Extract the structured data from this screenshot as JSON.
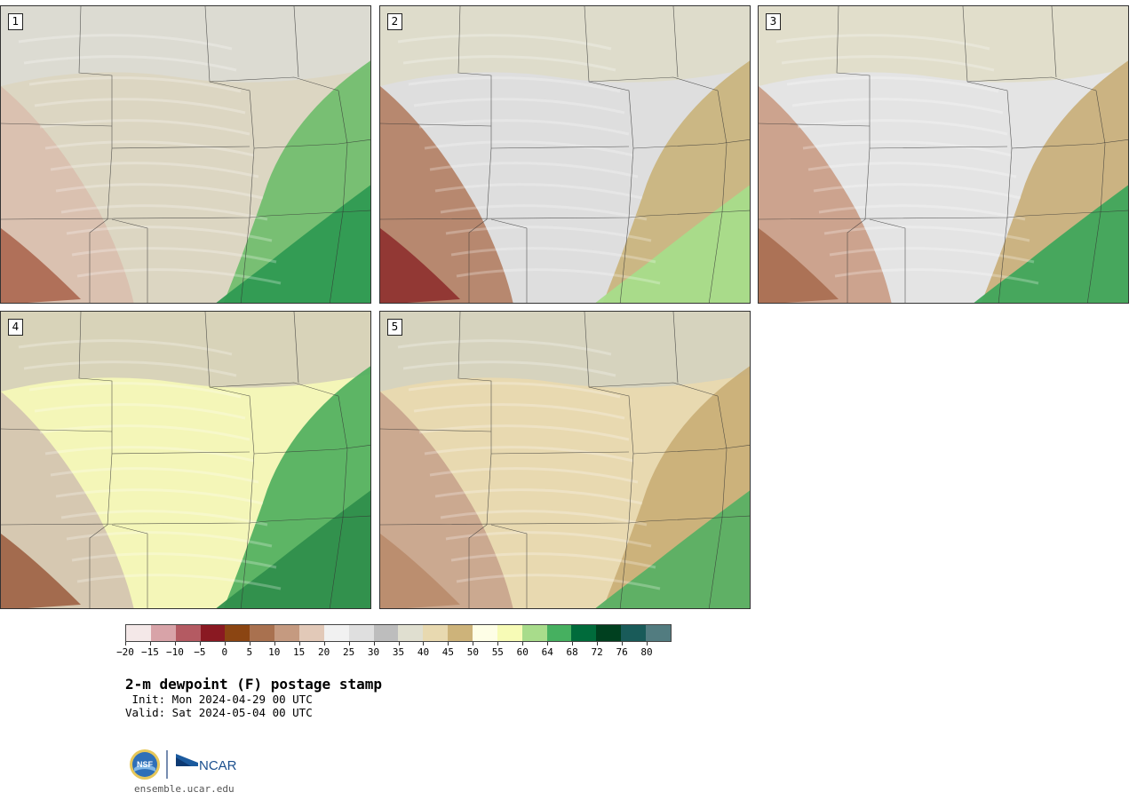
{
  "panels": [
    {
      "label": "1",
      "fills": {
        "north": "#dcdcd4",
        "west": "#d9bfae",
        "center": "#dcd6c2",
        "east": "#6dbd6a",
        "south": "#2f9a52",
        "accent": "#a8614a"
      }
    },
    {
      "label": "2",
      "fills": {
        "north": "#dedbc9",
        "west": "#b27e63",
        "center": "#dedede",
        "east": "#c9b27a",
        "south": "#a7dc8a",
        "accent": "#8c2a2a"
      }
    },
    {
      "label": "3",
      "fills": {
        "north": "#e0ddc8",
        "west": "#c99b84",
        "center": "#e4e4e4",
        "east": "#c8ad77",
        "south": "#3fa65b",
        "accent": "#a66a4c"
      }
    },
    {
      "label": "4",
      "fills": {
        "north": "#d5cfb9",
        "west": "#d3c3b0",
        "center": "#f4f6b8",
        "east": "#4cae5c",
        "south": "#2f8f4c",
        "accent": "#9a5b3d"
      }
    },
    {
      "label": "5",
      "fills": {
        "north": "#d4d1c0",
        "west": "#c8a38d",
        "center": "#e8d9b0",
        "east": "#c9ad75",
        "south": "#58b064",
        "accent": "#b98a6a"
      }
    }
  ],
  "colorbar": {
    "colors": [
      "#f4e8e8",
      "#d8a3a8",
      "#b45a62",
      "#8a1922",
      "#8b4512",
      "#a9714f",
      "#c59a80",
      "#e2c9b8",
      "#f1f1f1",
      "#dfdfdf",
      "#bdbdbd",
      "#e0dfd0",
      "#e8d9b0",
      "#cdb37a",
      "#fefee6",
      "#f7fbb6",
      "#a8dc8b",
      "#46b060",
      "#006b3b",
      "#00401f",
      "#195b59",
      "#527c80"
    ],
    "tick_labels": [
      "−20",
      "−15",
      "−10",
      "−5",
      "0",
      "5",
      "10",
      "15",
      "20",
      "25",
      "30",
      "35",
      "40",
      "45",
      "50",
      "55",
      "60",
      "64",
      "68",
      "72",
      "76",
      "80"
    ]
  },
  "title": "2-m dewpoint (F) postage stamp",
  "init": " Init: Mon 2024-04-29 00 UTC",
  "valid": "Valid: Sat 2024-05-04 00 UTC",
  "logos": {
    "nsf": "NSF",
    "ncar": "NCAR"
  },
  "site": "ensemble.ucar.edu"
}
